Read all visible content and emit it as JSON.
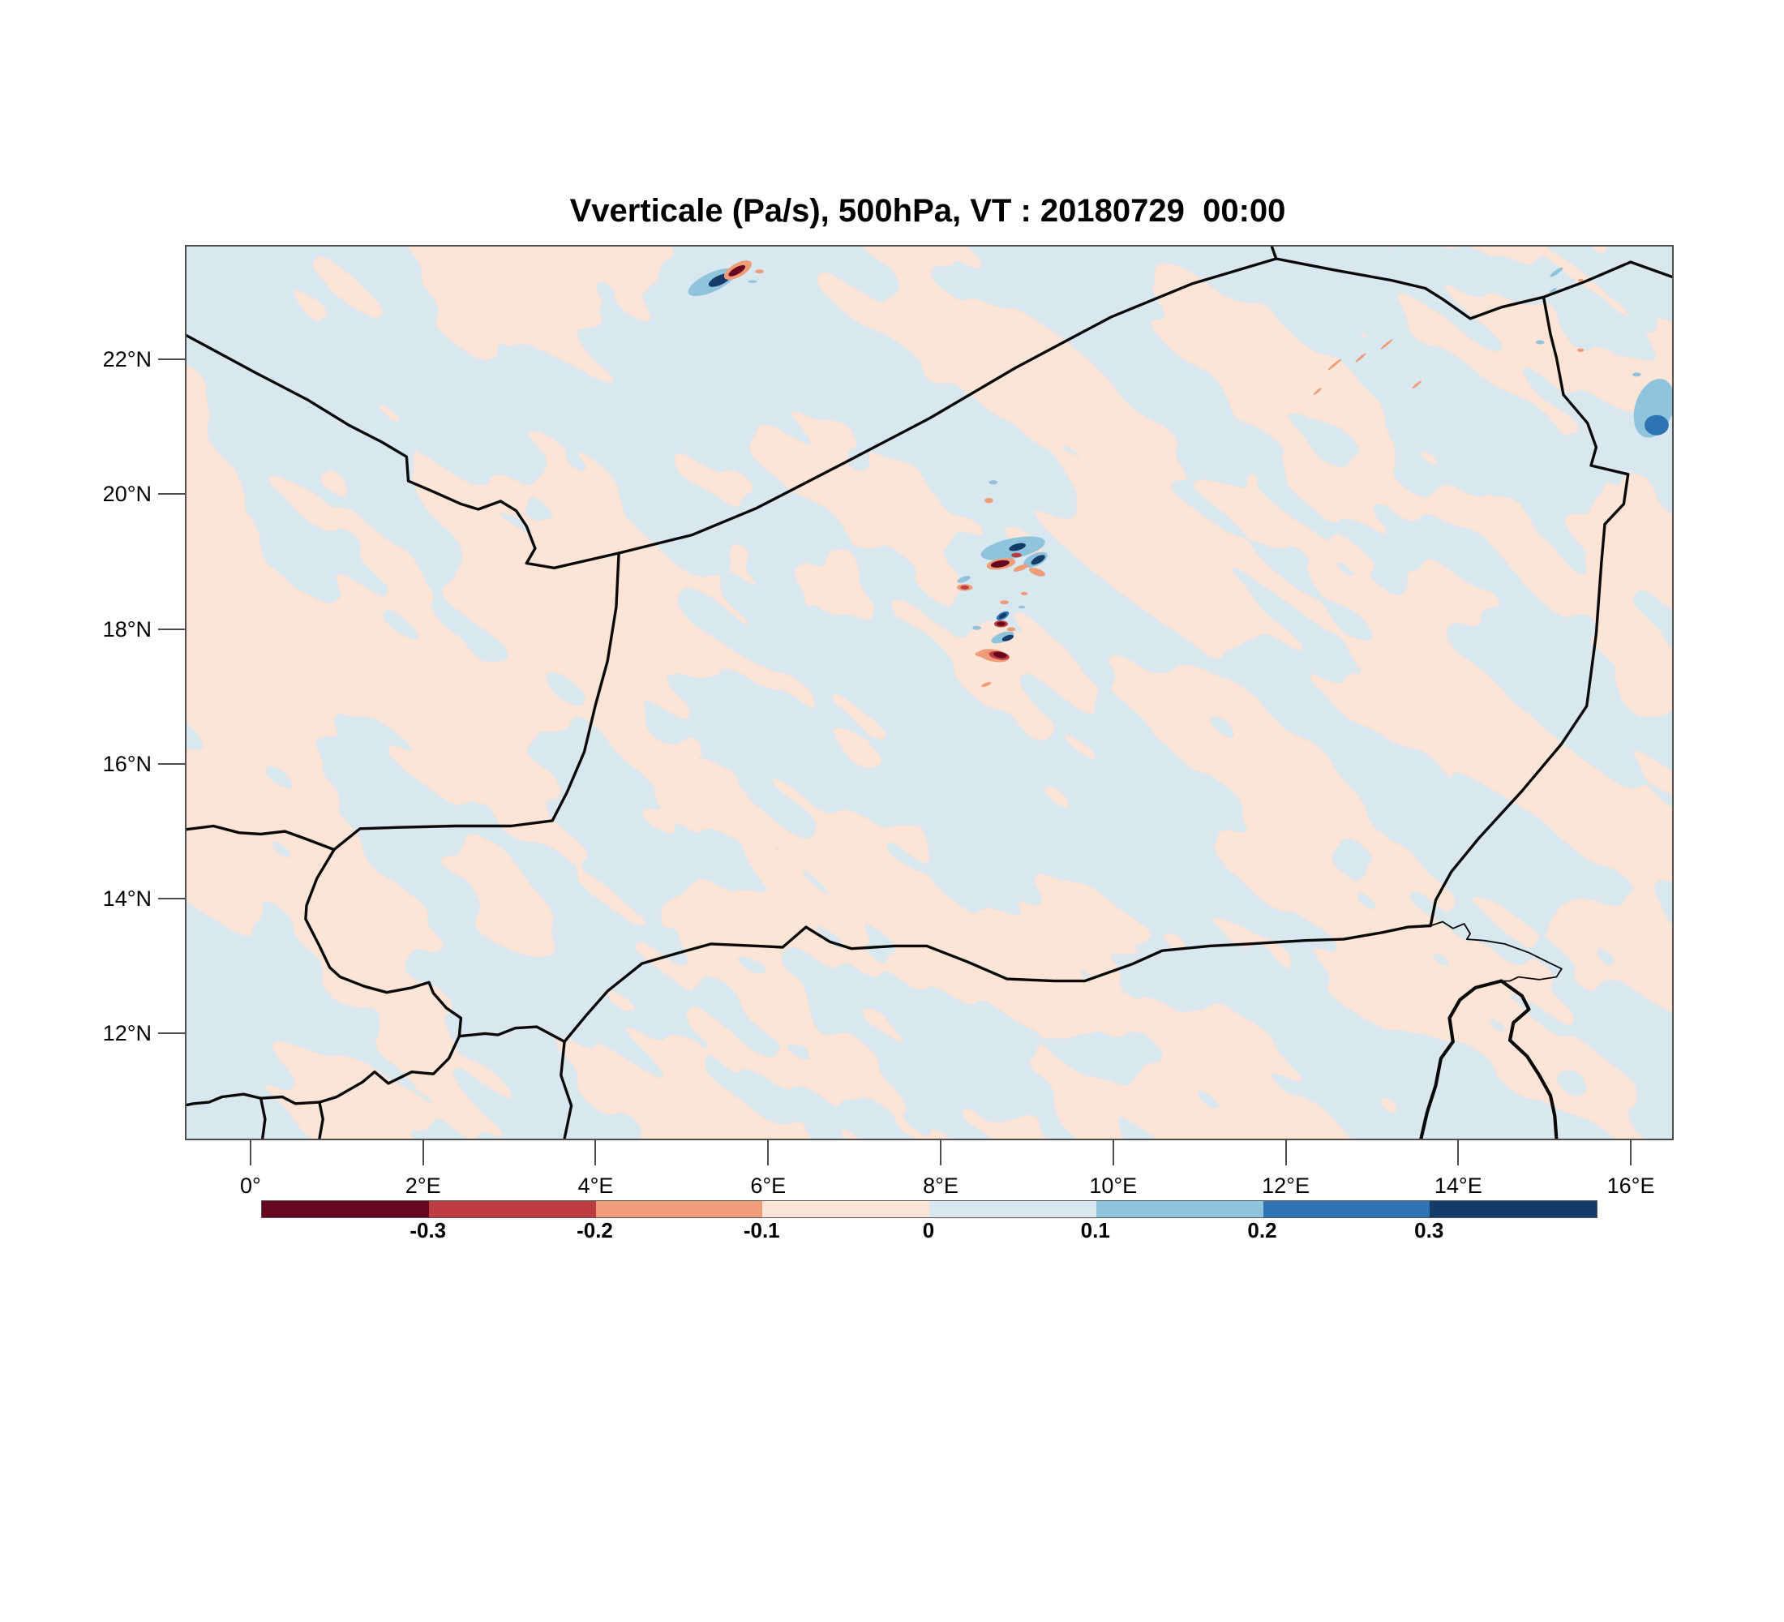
{
  "figure": {
    "title": "Vverticale (Pa/s), 500hPa, VT : 20180729  00:00"
  },
  "chart_data": {
    "type": "heatmap",
    "title": "Vverticale (Pa/s), 500hPa, VT : 20180729  00:00",
    "variable": "Vverticale (vertical velocity)",
    "units": "Pa/s",
    "pressure_level": "500hPa",
    "valid_time": "20180729 00:00",
    "grid_on": false,
    "legend_position": "bottom colorbar",
    "extent": {
      "lon_min": -0.761,
      "lon_max": 16.46,
      "lat_min": 10.46,
      "lat_max": 23.7
    },
    "lon_ticks": {
      "values": [
        0,
        2,
        4,
        6,
        8,
        10,
        12,
        14,
        16
      ],
      "labels": [
        "0°",
        "2°E",
        "4°E",
        "6°E",
        "8°E",
        "10°E",
        "12°E",
        "14°E",
        "16°E"
      ]
    },
    "lat_ticks": {
      "values": [
        22,
        20,
        18,
        16,
        14,
        12
      ],
      "labels": [
        "22°N",
        "20°N",
        "18°N",
        "16°N",
        "14°N",
        "12°N"
      ]
    },
    "contour_levels": [
      -0.3,
      -0.2,
      -0.1,
      0,
      0.1,
      0.2,
      0.3
    ],
    "colorbar": {
      "labels": [
        "-0.3",
        "-0.2",
        "-0.1",
        "0",
        "0.1",
        "0.2",
        "0.3"
      ],
      "colors": [
        "#67091e",
        "#bb3d41",
        "#ef9c79",
        "#fce4d6",
        "#d9e8f0",
        "#90c4dd",
        "#2e74b3",
        "#143c69"
      ]
    },
    "field_colors": {
      "weak_negative_pink": "#fce4d6",
      "weak_positive_blue": "#d9e8f0"
    },
    "background_description": "mottled weak field alternating between -0.1..0 (pink) and 0..0.1 (blue)",
    "level_color_index": {
      "n4": 0,
      "n3": 1,
      "n2": 2,
      "p2": 5,
      "p3": 6,
      "p4": 7
    },
    "anomalies": [
      [
        5.33,
        23.17,
        0.3,
        0.14,
        -25,
        "p2"
      ],
      [
        5.42,
        23.2,
        0.14,
        0.07,
        -25,
        "p4"
      ],
      [
        5.63,
        23.35,
        0.18,
        0.1,
        -30,
        "n2"
      ],
      [
        5.62,
        23.34,
        0.11,
        0.05,
        -30,
        "n4"
      ],
      [
        5.88,
        23.33,
        0.05,
        0.03,
        0,
        "n2"
      ],
      [
        5.8,
        23.18,
        0.05,
        0.02,
        0,
        "p2"
      ],
      [
        8.82,
        19.22,
        0.38,
        0.15,
        -12,
        "p2"
      ],
      [
        9.08,
        19.05,
        0.15,
        0.09,
        -25,
        "p2"
      ],
      [
        8.87,
        19.24,
        0.1,
        0.05,
        -15,
        "p4"
      ],
      [
        9.11,
        19.05,
        0.09,
        0.05,
        -30,
        "p4"
      ],
      [
        8.86,
        19.12,
        0.06,
        0.035,
        0,
        "n3"
      ],
      [
        8.68,
        18.99,
        0.17,
        0.08,
        -10,
        "n2"
      ],
      [
        8.67,
        18.99,
        0.11,
        0.05,
        -10,
        "n4"
      ],
      [
        8.91,
        18.93,
        0.09,
        0.04,
        -20,
        "n2"
      ],
      [
        9.1,
        18.87,
        0.1,
        0.05,
        20,
        "n2"
      ],
      [
        8.54,
        19.93,
        0.05,
        0.04,
        0,
        "n2"
      ],
      [
        8.59,
        20.2,
        0.05,
        0.03,
        0,
        "p2"
      ],
      [
        8.25,
        18.76,
        0.08,
        0.04,
        -20,
        "p2"
      ],
      [
        8.26,
        18.64,
        0.09,
        0.05,
        0,
        "n2"
      ],
      [
        8.26,
        18.64,
        0.05,
        0.03,
        0,
        "n3"
      ],
      [
        8.95,
        18.55,
        0.04,
        0.025,
        0,
        "n2"
      ],
      [
        8.72,
        18.42,
        0.05,
        0.03,
        0,
        "n2"
      ],
      [
        8.92,
        18.35,
        0.04,
        0.02,
        0,
        "p2"
      ],
      [
        8.7,
        18.22,
        0.08,
        0.05,
        -30,
        "p3"
      ],
      [
        8.7,
        18.22,
        0.05,
        0.03,
        -30,
        "p4"
      ],
      [
        8.68,
        18.1,
        0.08,
        0.05,
        0,
        "n3"
      ],
      [
        8.68,
        18.1,
        0.05,
        0.03,
        0,
        "n4"
      ],
      [
        8.8,
        18.02,
        0.05,
        0.03,
        0,
        "n2"
      ],
      [
        8.7,
        17.9,
        0.14,
        0.07,
        -20,
        "p2"
      ],
      [
        8.76,
        17.89,
        0.07,
        0.04,
        -20,
        "p4"
      ],
      [
        8.6,
        17.63,
        0.18,
        0.09,
        10,
        "n2"
      ],
      [
        8.66,
        17.63,
        0.12,
        0.06,
        10,
        "n3"
      ],
      [
        8.67,
        17.64,
        0.08,
        0.045,
        10,
        "n4"
      ],
      [
        8.45,
        17.65,
        0.07,
        0.04,
        0,
        "n2"
      ],
      [
        8.4,
        18.04,
        0.05,
        0.03,
        0,
        "p2"
      ],
      [
        8.51,
        17.2,
        0.06,
        0.025,
        -20,
        "n2"
      ],
      [
        16.25,
        21.3,
        0.22,
        0.45,
        18,
        "p2"
      ],
      [
        16.28,
        21.05,
        0.14,
        0.15,
        0,
        "p3"
      ],
      [
        16.05,
        21.8,
        0.05,
        0.03,
        0,
        "p2"
      ],
      [
        14.93,
        22.28,
        0.05,
        0.03,
        0,
        "p2"
      ],
      [
        15.4,
        22.16,
        0.04,
        0.025,
        0,
        "n2"
      ],
      [
        15.12,
        23.32,
        0.09,
        0.03,
        -35,
        "p2"
      ],
      [
        15.08,
        23.05,
        0.05,
        0.02,
        -35,
        "p2"
      ],
      [
        15.4,
        23.2,
        0.03,
        0.02,
        0,
        "n2"
      ],
      [
        12.55,
        21.95,
        0.1,
        0.018,
        -40,
        "n2"
      ],
      [
        12.85,
        22.05,
        0.08,
        0.018,
        -40,
        "n2"
      ],
      [
        13.15,
        22.25,
        0.09,
        0.018,
        -40,
        "n2"
      ],
      [
        13.5,
        21.65,
        0.07,
        0.018,
        -40,
        "n2"
      ],
      [
        12.35,
        21.55,
        0.06,
        0.018,
        -40,
        "n2"
      ]
    ],
    "borders": {
      "algeria_mali": [
        [
          -0.76,
          22.38
        ],
        [
          0.05,
          21.82
        ],
        [
          0.65,
          21.42
        ],
        [
          1.12,
          21.05
        ],
        [
          1.5,
          20.8
        ],
        [
          1.79,
          20.58
        ],
        [
          1.81,
          20.22
        ],
        [
          2.12,
          20.05
        ],
        [
          2.42,
          19.88
        ],
        [
          2.62,
          19.8
        ],
        [
          2.88,
          19.92
        ],
        [
          3.06,
          19.78
        ],
        [
          3.18,
          19.55
        ],
        [
          3.28,
          19.22
        ],
        [
          3.18,
          19.0
        ],
        [
          3.5,
          18.93
        ],
        [
          4.25,
          19.15
        ]
      ],
      "algeria_niger": [
        [
          4.25,
          19.15
        ],
        [
          5.1,
          19.42
        ],
        [
          5.85,
          19.82
        ],
        [
          6.85,
          20.48
        ],
        [
          7.85,
          21.15
        ],
        [
          8.85,
          21.9
        ],
        [
          9.95,
          22.65
        ],
        [
          10.9,
          23.15
        ],
        [
          11.87,
          23.52
        ]
      ],
      "algeria_libya": [
        [
          11.87,
          23.52
        ],
        [
          11.82,
          23.7
        ]
      ],
      "libya_niger": [
        [
          11.87,
          23.52
        ],
        [
          12.55,
          23.35
        ],
        [
          13.2,
          23.2
        ],
        [
          13.6,
          23.08
        ],
        [
          13.8,
          22.92
        ],
        [
          14.12,
          22.63
        ],
        [
          14.48,
          22.8
        ],
        [
          14.97,
          22.95
        ]
      ],
      "libya_chad": [
        [
          14.97,
          22.95
        ],
        [
          15.45,
          23.18
        ],
        [
          15.98,
          23.47
        ],
        [
          16.46,
          23.25
        ]
      ],
      "niger_chad": [
        [
          14.97,
          22.95
        ],
        [
          15.05,
          22.4
        ],
        [
          15.12,
          22.05
        ],
        [
          15.2,
          21.5
        ],
        [
          15.48,
          21.08
        ],
        [
          15.58,
          20.72
        ],
        [
          15.52,
          20.45
        ],
        [
          15.95,
          20.32
        ],
        [
          15.9,
          19.88
        ],
        [
          15.68,
          19.58
        ],
        [
          15.64,
          19.0
        ],
        [
          15.58,
          17.95
        ],
        [
          15.47,
          16.88
        ],
        [
          15.18,
          16.32
        ],
        [
          14.72,
          15.62
        ],
        [
          14.22,
          14.92
        ],
        [
          13.9,
          14.42
        ],
        [
          13.72,
          14.0
        ],
        [
          13.66,
          13.62
        ]
      ],
      "nigeria_niger": [
        [
          3.62,
          11.9
        ],
        [
          3.88,
          12.3
        ],
        [
          4.12,
          12.65
        ],
        [
          4.52,
          13.06
        ],
        [
          4.95,
          13.22
        ],
        [
          5.32,
          13.35
        ],
        [
          5.85,
          13.32
        ],
        [
          6.15,
          13.3
        ],
        [
          6.42,
          13.6
        ],
        [
          6.7,
          13.38
        ],
        [
          6.95,
          13.28
        ],
        [
          7.45,
          13.32
        ],
        [
          7.82,
          13.32
        ],
        [
          8.3,
          13.08
        ],
        [
          8.75,
          12.83
        ],
        [
          9.3,
          12.8
        ],
        [
          9.65,
          12.8
        ],
        [
          10.2,
          13.05
        ],
        [
          10.55,
          13.25
        ],
        [
          11.1,
          13.32
        ],
        [
          11.55,
          13.35
        ],
        [
          12.2,
          13.4
        ],
        [
          12.65,
          13.42
        ],
        [
          13.1,
          13.52
        ],
        [
          13.4,
          13.6
        ],
        [
          13.66,
          13.62
        ]
      ],
      "lake_chad": [
        [
          13.66,
          13.62
        ],
        [
          13.8,
          13.68
        ],
        [
          13.92,
          13.58
        ],
        [
          14.05,
          13.65
        ],
        [
          14.12,
          13.5
        ],
        [
          14.08,
          13.42
        ],
        [
          14.28,
          13.4
        ],
        [
          14.52,
          13.35
        ],
        [
          14.8,
          13.22
        ],
        [
          15.02,
          13.08
        ],
        [
          15.18,
          12.98
        ],
        [
          15.12,
          12.86
        ],
        [
          14.92,
          12.82
        ],
        [
          14.68,
          12.86
        ],
        [
          14.58,
          12.8
        ],
        [
          14.48,
          12.8
        ]
      ],
      "nigeria_cameroon": [
        [
          14.48,
          12.8
        ],
        [
          14.18,
          12.7
        ],
        [
          14.0,
          12.52
        ],
        [
          13.88,
          12.25
        ],
        [
          13.92,
          11.9
        ],
        [
          13.78,
          11.65
        ],
        [
          13.72,
          11.25
        ],
        [
          13.62,
          10.85
        ],
        [
          13.55,
          10.46
        ]
      ],
      "cameroon_chad": [
        [
          14.48,
          12.8
        ],
        [
          14.72,
          12.58
        ],
        [
          14.8,
          12.38
        ],
        [
          14.62,
          12.18
        ],
        [
          14.58,
          11.92
        ],
        [
          14.78,
          11.68
        ],
        [
          14.92,
          11.4
        ],
        [
          15.05,
          11.1
        ],
        [
          15.1,
          10.8
        ],
        [
          15.12,
          10.46
        ]
      ],
      "mali_burkina": [
        [
          -0.76,
          15.05
        ],
        [
          -0.45,
          15.1
        ],
        [
          -0.15,
          15.0
        ],
        [
          0.1,
          14.98
        ],
        [
          0.38,
          15.02
        ],
        [
          0.6,
          14.92
        ],
        [
          0.95,
          14.75
        ]
      ],
      "mali_niger_west": [
        [
          0.95,
          14.75
        ],
        [
          1.25,
          15.06
        ],
        [
          1.7,
          15.08
        ],
        [
          2.35,
          15.1
        ],
        [
          3.0,
          15.1
        ],
        [
          3.48,
          15.18
        ],
        [
          3.65,
          15.6
        ],
        [
          3.85,
          16.2
        ],
        [
          3.98,
          16.9
        ],
        [
          4.12,
          17.55
        ],
        [
          4.22,
          18.35
        ],
        [
          4.25,
          19.15
        ]
      ],
      "burkina_niger": [
        [
          0.95,
          14.75
        ],
        [
          0.75,
          14.32
        ],
        [
          0.63,
          13.92
        ],
        [
          0.62,
          13.72
        ],
        [
          0.78,
          13.32
        ],
        [
          0.9,
          13.0
        ],
        [
          1.02,
          12.86
        ],
        [
          1.3,
          12.72
        ],
        [
          1.56,
          12.63
        ],
        [
          1.85,
          12.7
        ],
        [
          2.05,
          12.78
        ],
        [
          2.1,
          12.62
        ],
        [
          2.25,
          12.4
        ],
        [
          2.42,
          12.25
        ],
        [
          2.4,
          11.98
        ]
      ],
      "benin_niger": [
        [
          2.4,
          11.98
        ],
        [
          2.7,
          12.02
        ],
        [
          2.85,
          12.0
        ],
        [
          3.05,
          12.1
        ],
        [
          3.3,
          12.12
        ],
        [
          3.62,
          11.9
        ]
      ],
      "benin_nigeria": [
        [
          3.62,
          11.9
        ],
        [
          3.58,
          11.4
        ],
        [
          3.7,
          10.95
        ],
        [
          3.62,
          10.46
        ]
      ],
      "burkina_benin": [
        [
          2.4,
          11.98
        ],
        [
          2.28,
          11.65
        ],
        [
          2.1,
          11.42
        ],
        [
          1.85,
          11.45
        ],
        [
          1.58,
          11.28
        ],
        [
          1.42,
          11.45
        ],
        [
          1.28,
          11.3
        ],
        [
          0.98,
          11.08
        ],
        [
          0.78,
          11.0
        ]
      ],
      "burkina_togo": [
        [
          0.78,
          11.0
        ],
        [
          0.5,
          10.98
        ],
        [
          0.35,
          11.08
        ],
        [
          0.1,
          11.06
        ],
        [
          -0.1,
          11.12
        ],
        [
          -0.35,
          11.08
        ],
        [
          -0.5,
          11.0
        ],
        [
          -0.68,
          10.98
        ],
        [
          -0.76,
          10.96
        ]
      ],
      "togo_benin_south": [
        [
          0.78,
          11.0
        ],
        [
          0.82,
          10.75
        ],
        [
          0.78,
          10.46
        ]
      ],
      "ghana_togo_south": [
        [
          0.1,
          11.06
        ],
        [
          0.15,
          10.75
        ],
        [
          0.12,
          10.46
        ]
      ]
    },
    "border_line_widths": {
      "default": 3.4,
      "lake_chad": 1.8,
      "nigeria_cameroon": 4.2,
      "cameroon_chad": 4.2
    },
    "border_color": "#0a0a0a",
    "frame_color": "#4d4d4d"
  }
}
